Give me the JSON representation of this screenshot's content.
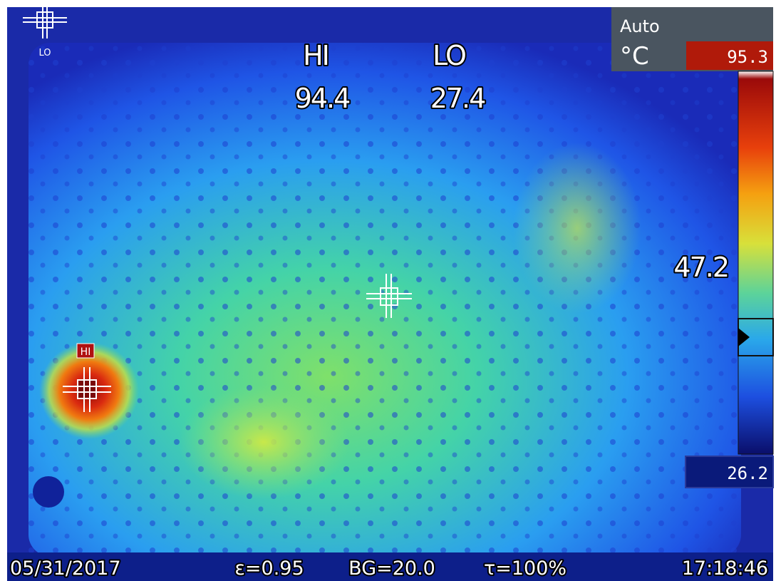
{
  "overlay": {
    "lo_marker_label": "LO",
    "hi_marker_label": "HI",
    "hi_title": "HI",
    "lo_title": "LO",
    "hi_value": "94.4",
    "lo_value": "27.4",
    "center_value": "47.2"
  },
  "scale_panel": {
    "mode": "Auto",
    "unit": "°C",
    "max": "95.3",
    "min": "26.2"
  },
  "status_bar": {
    "date": "05/31/2017",
    "emissivity": "ε=0.95",
    "background": "BG=20.0",
    "transmission": "τ=100%",
    "time": "17:18:46"
  }
}
